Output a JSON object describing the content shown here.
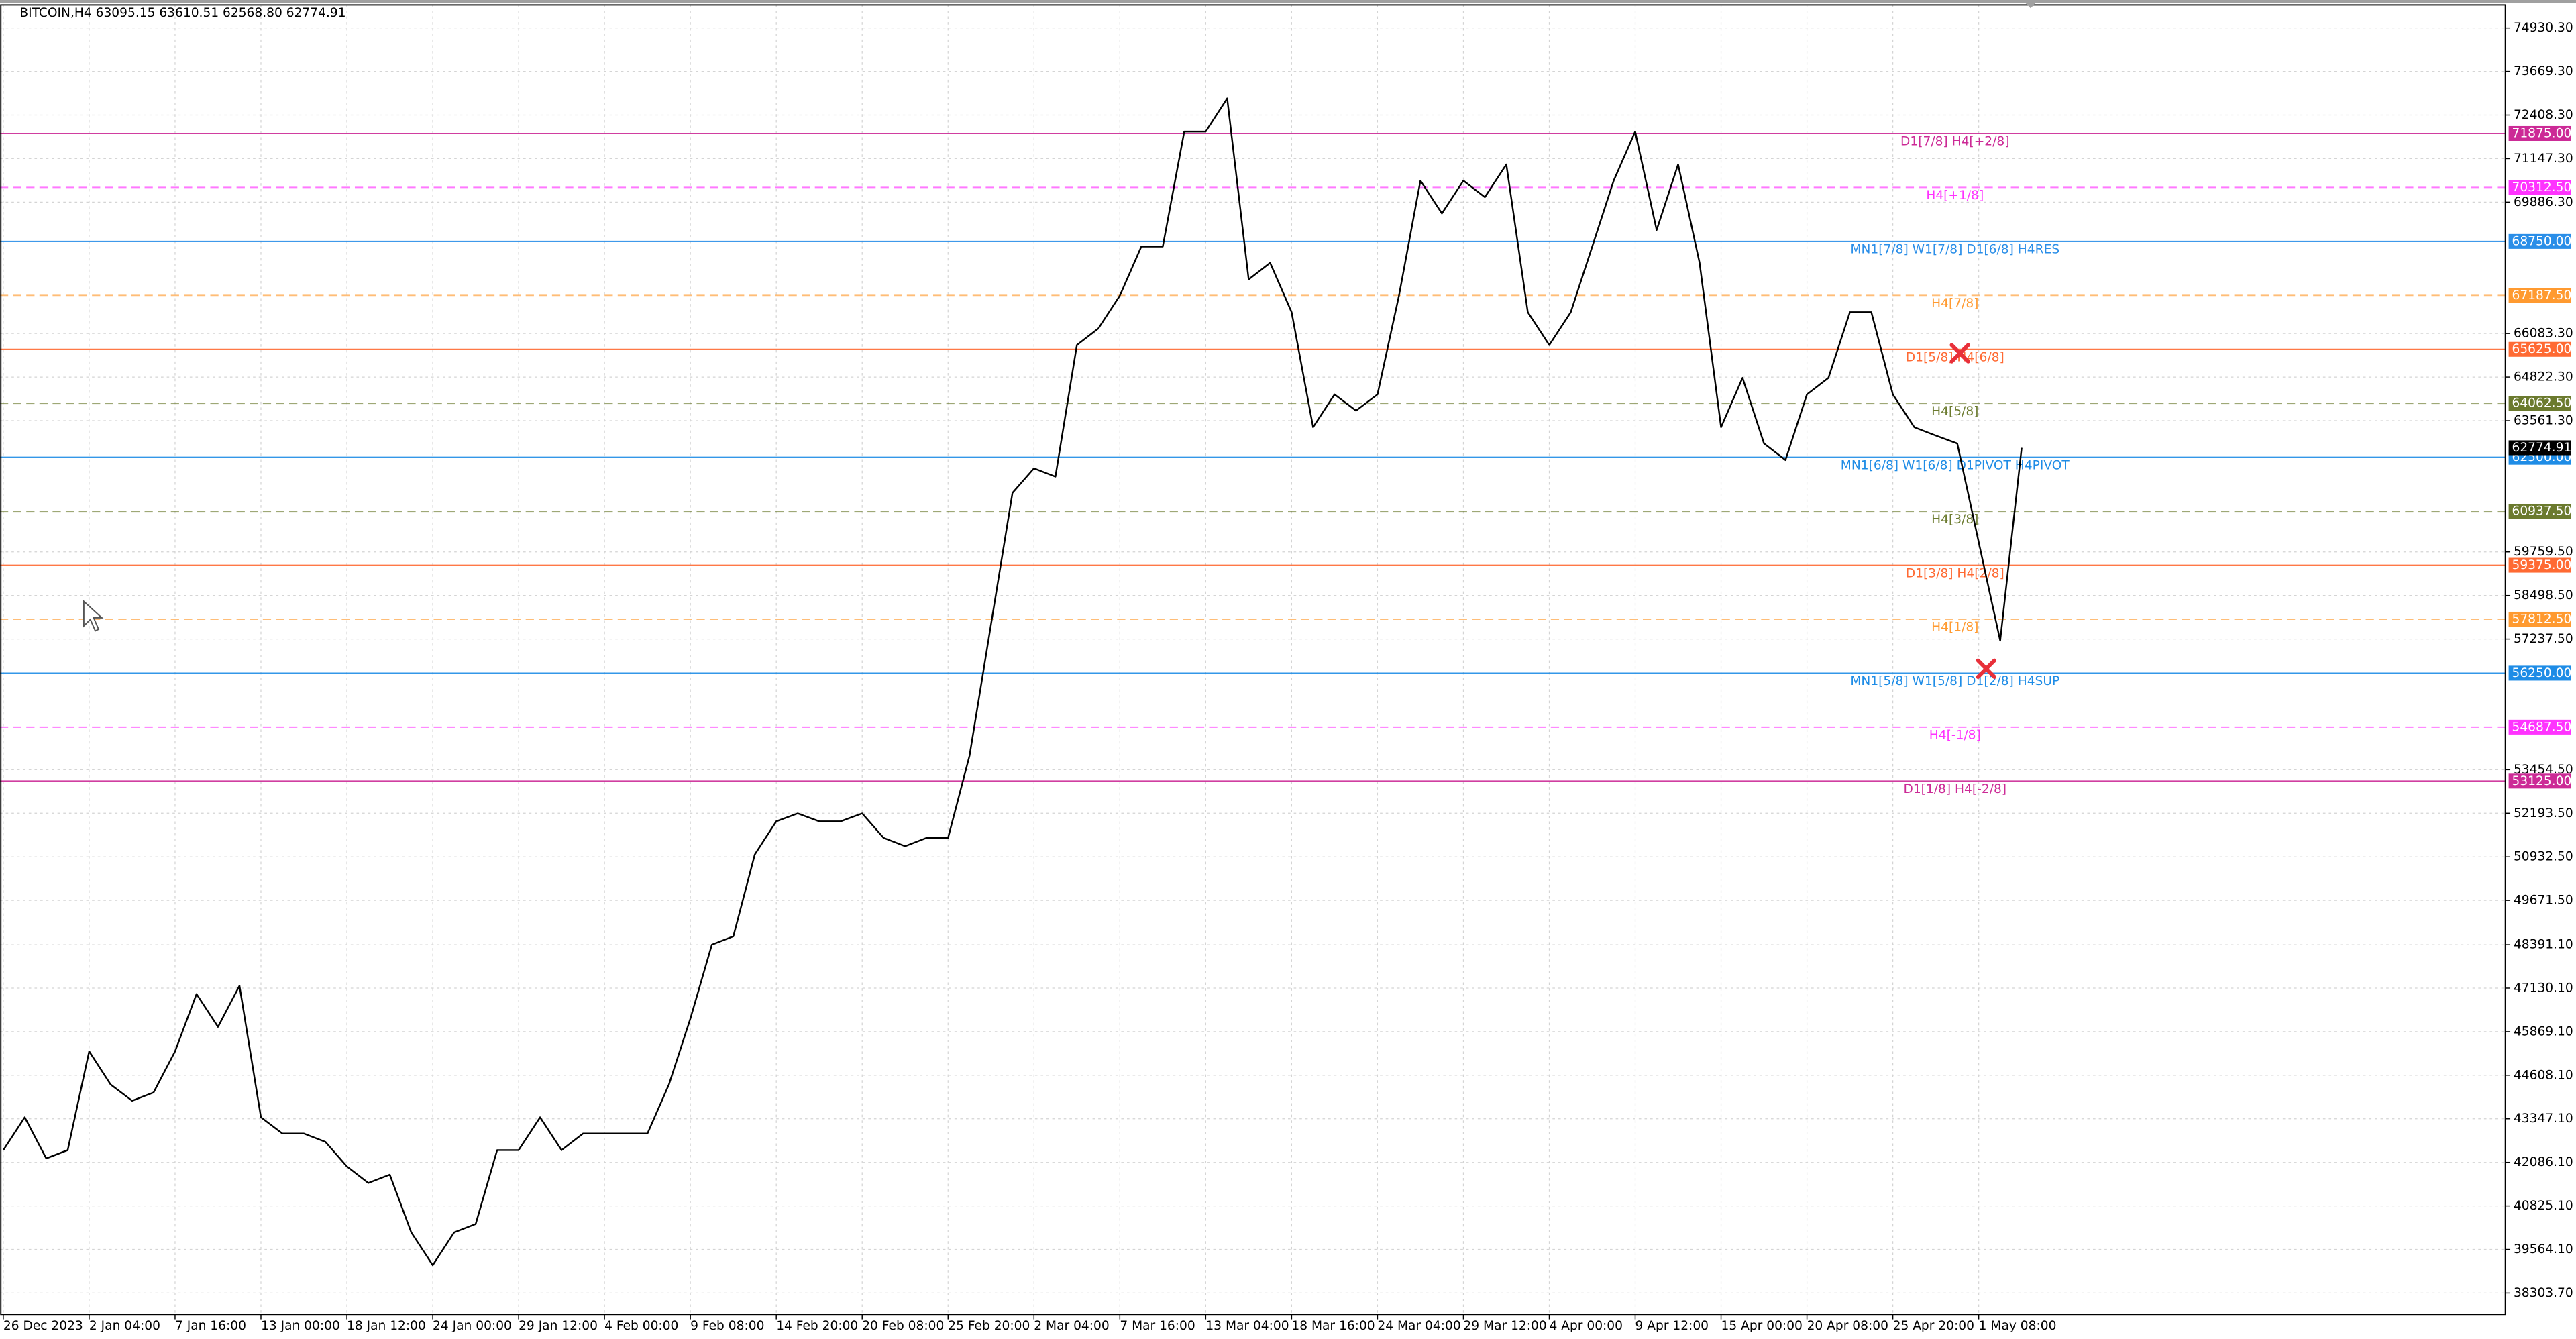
{
  "chart_data": {
    "type": "line",
    "title": "BITCOIN,H4  63095.15 63610.51 62568.80 62774.91",
    "categories": [
      "26 Dec 2023",
      null,
      null,
      null,
      "2 Jan 04:00",
      null,
      null,
      null,
      "7 Jan 16:00",
      null,
      null,
      null,
      "13 Jan 00:00",
      null,
      null,
      null,
      "18 Jan 12:00",
      null,
      null,
      null,
      "24 Jan 00:00",
      null,
      null,
      null,
      "29 Jan 12:00",
      null,
      null,
      null,
      "4 Feb 00:00",
      null,
      null,
      null,
      "9 Feb 08:00",
      null,
      null,
      null,
      "14 Feb 20:00",
      null,
      null,
      null,
      "20 Feb 08:00",
      null,
      null,
      null,
      "25 Feb 20:00",
      null,
      null,
      null,
      "2 Mar 04:00",
      null,
      null,
      null,
      "7 Mar 16:00",
      null,
      null,
      null,
      "13 Mar 04:00",
      null,
      null,
      null,
      "18 Mar 16:00",
      null,
      null,
      null,
      "24 Mar 04:00",
      null,
      null,
      null,
      "29 Mar 12:00",
      null,
      null,
      null,
      "4 Apr 00:00",
      null,
      null,
      null,
      "9 Apr 12:00",
      null,
      null,
      null,
      "15 Apr 00:00",
      null,
      null,
      null,
      "20 Apr 08:00",
      null,
      null,
      null,
      "25 Apr 20:00",
      null,
      null,
      null,
      "1 May 08:00",
      null,
      null
    ],
    "series": [
      {
        "name": "BITCOIN,H4",
        "color": "#000000",
        "values": [
          42440,
          43390,
          42200,
          42440,
          45300,
          44340,
          43870,
          44110,
          45300,
          46960,
          46010,
          47200,
          43390,
          42920,
          42920,
          42680,
          41970,
          41490,
          41730,
          40060,
          39110,
          40060,
          40300,
          42440,
          42440,
          43390,
          42440,
          42920,
          42920,
          42920,
          42920,
          44340,
          46250,
          48390,
          48630,
          51000,
          51960,
          52190,
          51960,
          51960,
          52190,
          51480,
          51240,
          51480,
          51480,
          53860,
          57660,
          61470,
          62180,
          61940,
          65750,
          66230,
          67180,
          68600,
          68600,
          71930,
          71930,
          72890,
          67650,
          68130,
          66700,
          63370,
          64320,
          63850,
          64320,
          67180,
          70510,
          69560,
          70510,
          70030,
          70980,
          66700,
          65750,
          66700,
          68600,
          70510,
          71930,
          69080,
          70980,
          68130,
          63370,
          64800,
          62900,
          62420,
          64320,
          64800,
          66700,
          66700,
          64320,
          63370,
          63130,
          62900,
          60040,
          57190,
          62774.91
        ]
      }
    ],
    "ylim": [
      37686,
      75596
    ],
    "yticks": [
      {
        "value": 74930.3,
        "label": "74930.30"
      },
      {
        "value": 73669.3,
        "label": "73669.30"
      },
      {
        "value": 72408.3,
        "label": "72408.30"
      },
      {
        "value": 71147.3,
        "label": "71147.30"
      },
      {
        "value": 69886.3,
        "label": "69886.30"
      },
      {
        "value": 66083.3,
        "label": "66083.30"
      },
      {
        "value": 64822.3,
        "label": "64822.30"
      },
      {
        "value": 63561.3,
        "label": "63561.30"
      },
      {
        "value": 59759.5,
        "label": "59759.50"
      },
      {
        "value": 58498.5,
        "label": "58498.50"
      },
      {
        "value": 57237.5,
        "label": "57237.50"
      },
      {
        "value": 53454.5,
        "label": "53454.50"
      },
      {
        "value": 52193.5,
        "label": "52193.50"
      },
      {
        "value": 50932.5,
        "label": "50932.50"
      },
      {
        "value": 49671.5,
        "label": "49671.50"
      },
      {
        "value": 48391.1,
        "label": "48391.10"
      },
      {
        "value": 47130.1,
        "label": "47130.10"
      },
      {
        "value": 45869.1,
        "label": "45869.10"
      },
      {
        "value": 44608.1,
        "label": "44608.10"
      },
      {
        "value": 43347.1,
        "label": "43347.10"
      },
      {
        "value": 42086.1,
        "label": "42086.10"
      },
      {
        "value": 40825.1,
        "label": "40825.10"
      },
      {
        "value": 39564.1,
        "label": "39564.10"
      },
      {
        "value": 38303.7,
        "label": "38303.70"
      }
    ],
    "grid": true,
    "current_price": {
      "value": 62774.91,
      "label": "62774.91"
    },
    "levels": [
      {
        "price": {
          "value": 71875,
          "label": "71875.00"
        },
        "text": "D1[7/8] H4[+2/8]",
        "color": "#cc2a96",
        "style": "solid"
      },
      {
        "price": {
          "value": 70312.5,
          "label": "70312.50"
        },
        "text": "H4[+1/8]",
        "color": "#ff33ff",
        "style": "dashed"
      },
      {
        "price": {
          "value": 68750,
          "label": "68750.00"
        },
        "text": "MN1[7/8] W1[7/8] D1[6/8] H4RES",
        "color": "#2a8ee8",
        "style": "solid"
      },
      {
        "price": {
          "value": 67187.5,
          "label": "67187.50"
        },
        "text": "H4[7/8]",
        "color": "#ff9a30",
        "style": "dashed"
      },
      {
        "price": {
          "value": 65625,
          "label": "65625.00"
        },
        "text": "D1[5/8] H4[6/8]",
        "color": "#ff6a33",
        "style": "solid"
      },
      {
        "price": {
          "value": 64062.5,
          "label": "64062.50"
        },
        "text": "H4[5/8]",
        "color": "#6b7a2e",
        "style": "dashed"
      },
      {
        "price": {
          "value": 62500,
          "label": "62500.00"
        },
        "text": "MN1[6/8] W1[6/8] D1PIVOT H4PIVOT",
        "color": "#1e8ce6",
        "style": "solid"
      },
      {
        "price": {
          "value": 60937.5,
          "label": "60937.50"
        },
        "text": "H4[3/8]",
        "color": "#6b7a2e",
        "style": "dashed"
      },
      {
        "price": {
          "value": 59375,
          "label": "59375.00"
        },
        "text": "D1[3/8] H4[2/8]",
        "color": "#ff6a33",
        "style": "solid"
      },
      {
        "price": {
          "value": 57812.5,
          "label": "57812.50"
        },
        "text": "H4[1/8]",
        "color": "#ff9a30",
        "style": "dashed"
      },
      {
        "price": {
          "value": 56250,
          "label": "56250.00"
        },
        "text": "MN1[5/8] W1[5/8] D1[2/8] H4SUP",
        "color": "#1e8ce6",
        "style": "solid"
      },
      {
        "price": {
          "value": 54687.5,
          "label": "54687.50"
        },
        "text": "H4[-1/8]",
        "color": "#ff33ff",
        "style": "dashed"
      },
      {
        "price": {
          "value": 53125,
          "label": "53125.00"
        },
        "text": "D1[1/8] H4[-2/8]",
        "color": "#cc2a96",
        "style": "solid"
      }
    ]
  }
}
